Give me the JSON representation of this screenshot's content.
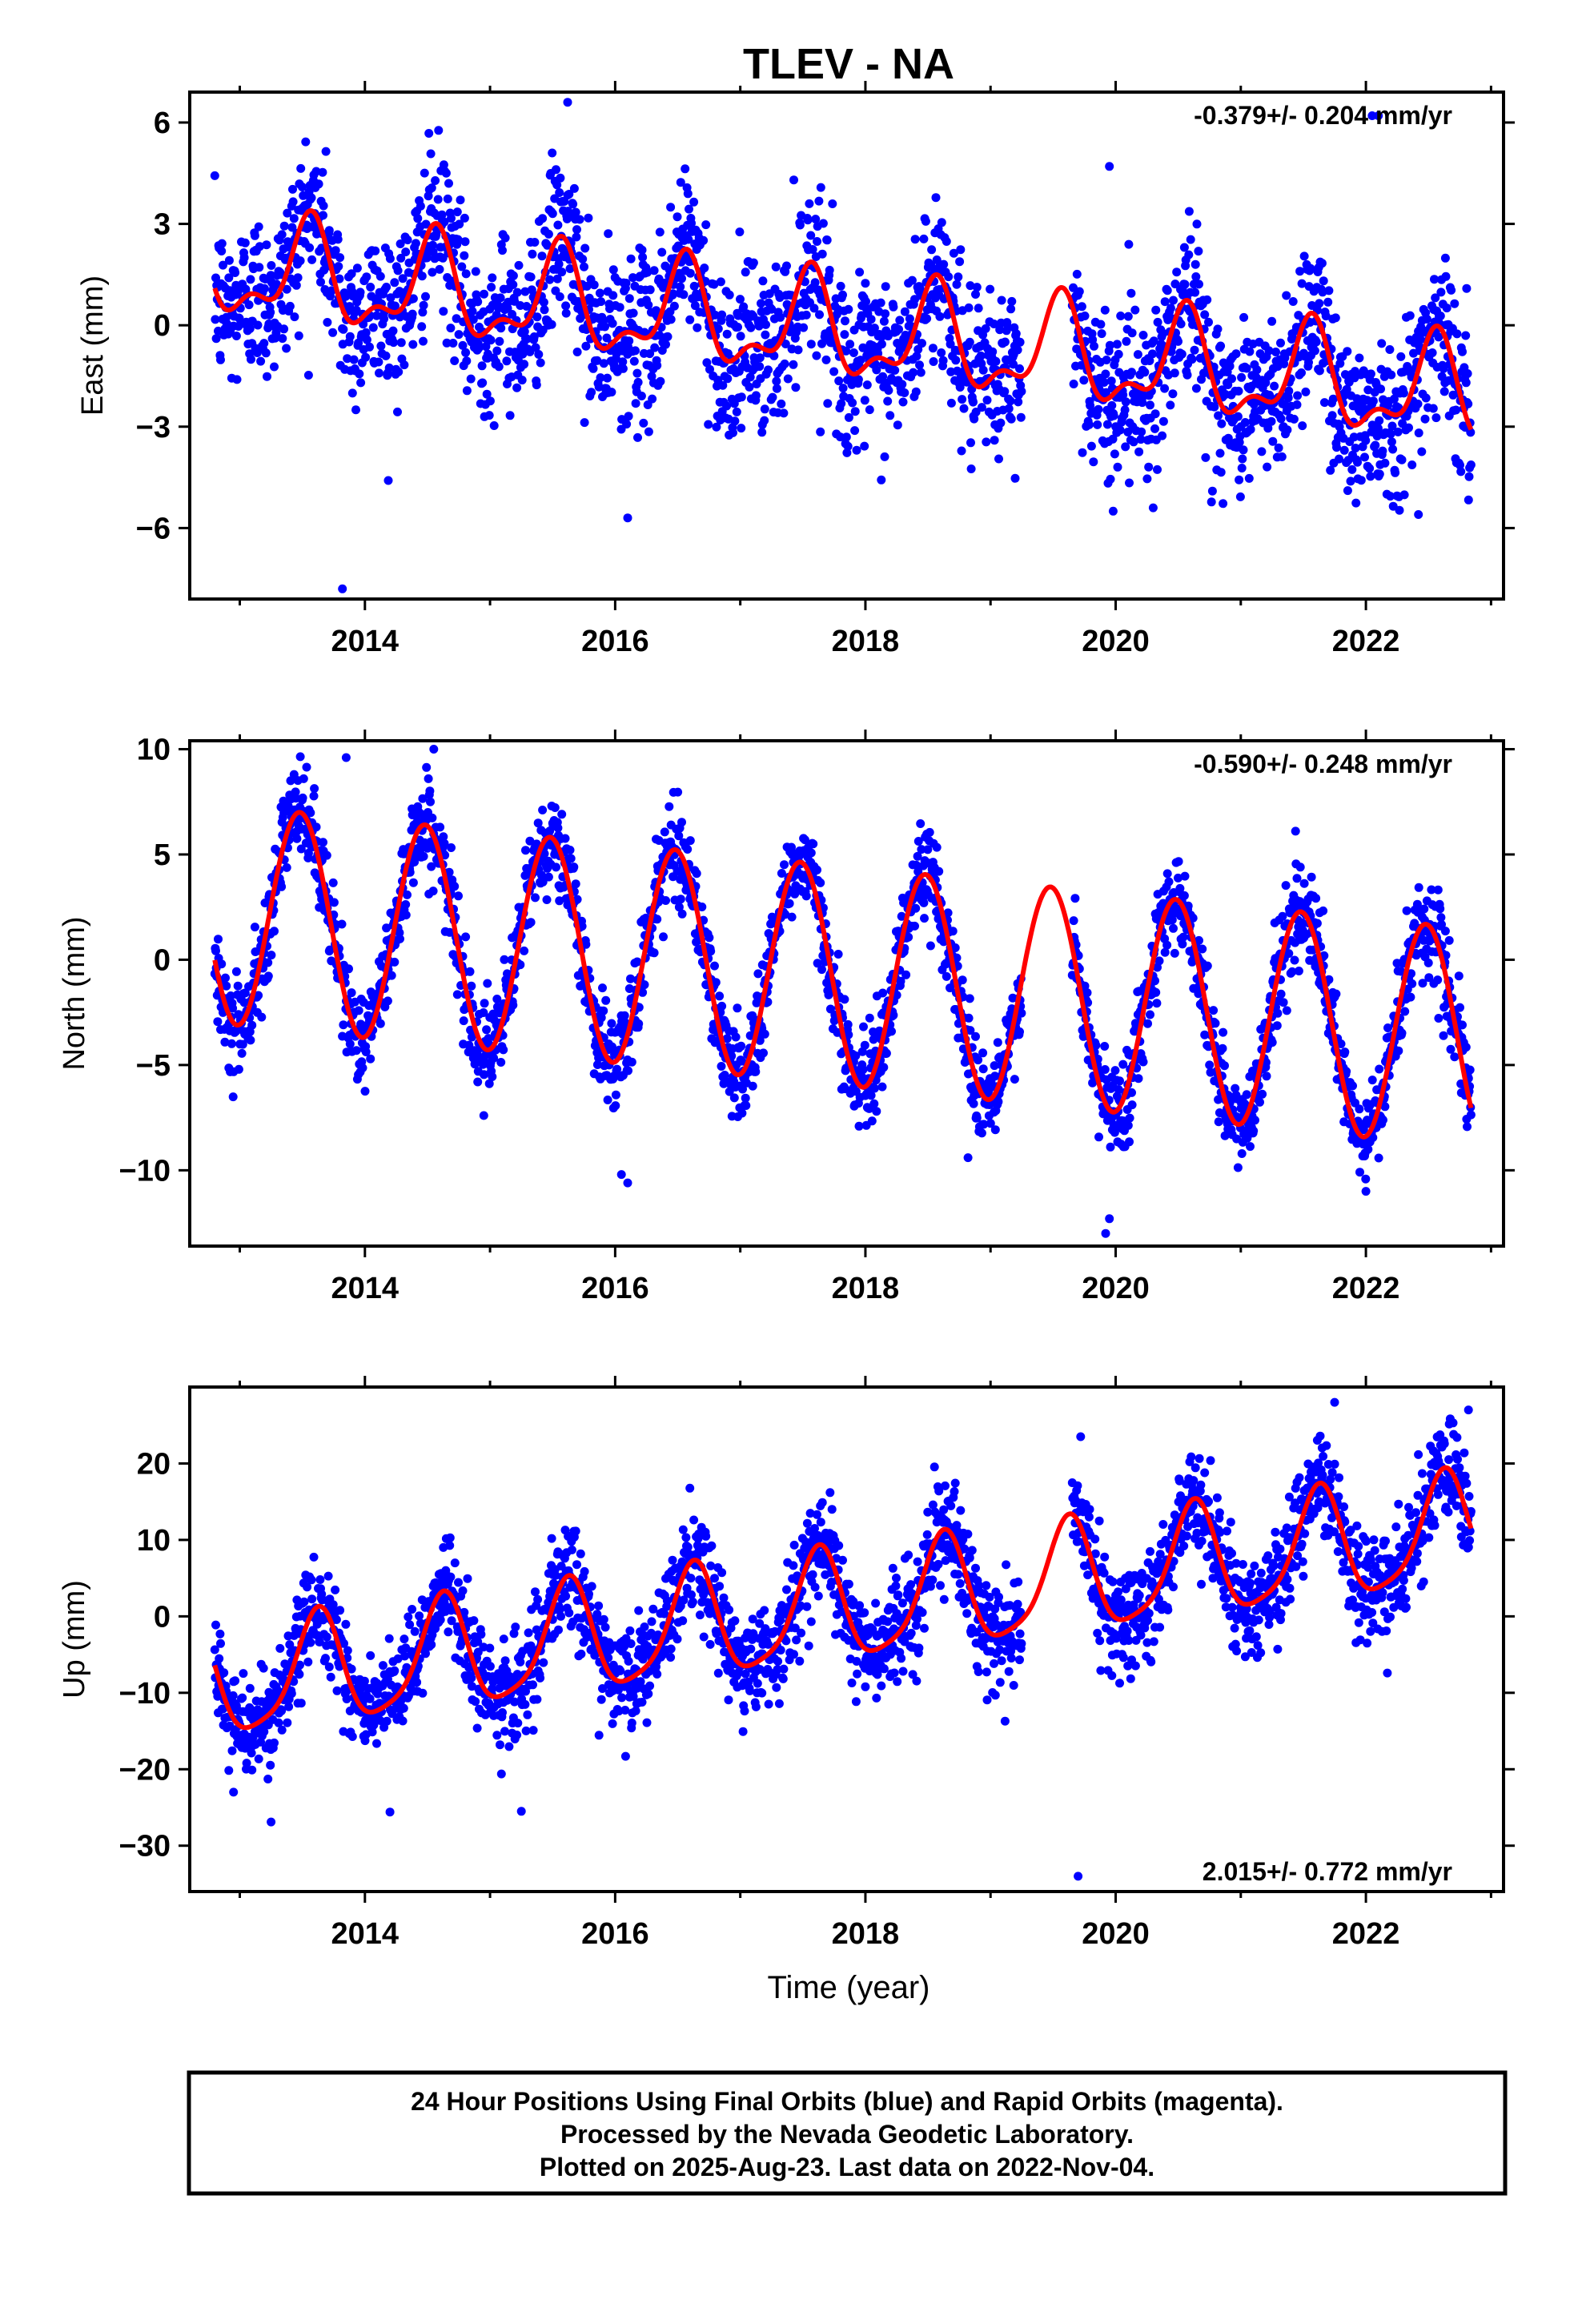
{
  "title": "TLEV - NA",
  "x_axis_label": "Time (year)",
  "footer": {
    "line1": "24 Hour Positions Using Final Orbits (blue) and Rapid Orbits (magenta).",
    "line2": "Processed by the Nevada Geodetic Laboratory.",
    "line3": "Plotted on 2025-Aug-23. Last data on 2022-Nov-04."
  },
  "colors": {
    "data": "#0000ff",
    "model": "#ff0000",
    "frame": "#000000"
  },
  "chart_data": [
    {
      "type": "scatter",
      "name": "east",
      "ylabel": "East (mm)",
      "rate_text": "-0.379+/- 0.204 mm/yr",
      "rate_position": "top-right",
      "xlim": [
        2012.6,
        2023.1
      ],
      "ylim": [
        -8.1,
        6.9
      ],
      "xticks": [
        2014,
        2016,
        2018,
        2020,
        2022
      ],
      "xtick_labels": [
        "2014",
        "2016",
        "2018",
        "2020",
        "2022"
      ],
      "yticks": [
        -6,
        -3,
        0,
        3,
        6
      ],
      "ytick_labels": [
        "−6",
        "−3",
        "0",
        "3",
        "6"
      ],
      "data_start": 2012.8,
      "data_end": 2022.84,
      "model": {
        "offset": 1.7,
        "trend": -0.379,
        "annual_amp": 1.35,
        "annual_peak": 0.55,
        "semiannual_amp": 0.65,
        "semiannual_peak": 0.08,
        "scatter": 1.2
      },
      "outliers": [
        [
          2013.82,
          -7.8
        ],
        [
          2016.1,
          -5.7
        ],
        [
          2019.98,
          -5.5
        ],
        [
          2020.3,
          -5.4
        ],
        [
          2022.1,
          6.2
        ],
        [
          2015.62,
          6.6
        ],
        [
          2019.95,
          4.7
        ],
        [
          2022.05,
          6.2
        ],
        [
          2022.42,
          -5.6
        ]
      ]
    },
    {
      "type": "scatter",
      "name": "north",
      "ylabel": "North (mm)",
      "rate_text": "-0.590+/- 0.248 mm/yr",
      "rate_position": "top-right",
      "xlim": [
        2012.6,
        2023.1
      ],
      "ylim": [
        -13.6,
        10.4
      ],
      "xticks": [
        2014,
        2016,
        2018,
        2020,
        2022
      ],
      "xtick_labels": [
        "2014",
        "2016",
        "2018",
        "2020",
        "2022"
      ],
      "yticks": [
        -10,
        -5,
        0,
        5,
        10
      ],
      "ytick_labels": [
        "−10",
        "−5",
        "0",
        "5",
        "10"
      ],
      "data_start": 2012.8,
      "data_end": 2022.84,
      "model": {
        "offset": 2.2,
        "trend": -0.59,
        "annual_amp": 5.2,
        "annual_peak": 0.48,
        "semiannual_amp": 0.0,
        "semiannual_peak": 0.0,
        "scatter": 1.1
      },
      "outliers": [
        [
          2016.05,
          -10.2
        ],
        [
          2016.1,
          -10.6
        ],
        [
          2019.95,
          -12.3
        ],
        [
          2019.92,
          -13.0
        ],
        [
          2013.85,
          9.6
        ],
        [
          2014.55,
          10.0
        ],
        [
          2014.95,
          -7.4
        ],
        [
          2018.82,
          -9.4
        ],
        [
          2022.0,
          -11.0
        ]
      ]
    },
    {
      "type": "scatter",
      "name": "up",
      "ylabel": "Up (mm)",
      "rate_text": "2.015+/- 0.772 mm/yr",
      "rate_position": "bottom-right",
      "xlim": [
        2012.6,
        2023.1
      ],
      "ylim": [
        -36,
        30
      ],
      "xticks": [
        2014,
        2016,
        2018,
        2020,
        2022
      ],
      "xtick_labels": [
        "2014",
        "2016",
        "2018",
        "2020",
        "2022"
      ],
      "yticks": [
        -30,
        -20,
        -10,
        0,
        10,
        20
      ],
      "ytick_labels": [
        "−30",
        "−20",
        "−10",
        "0",
        "10",
        "20"
      ],
      "data_start": 2012.8,
      "data_end": 2022.84,
      "model": {
        "offset": -9.0,
        "trend": 2.015,
        "annual_amp": 7.2,
        "annual_peak": 0.62,
        "semiannual_amp": 1.5,
        "semiannual_peak": 0.15,
        "scatter": 3.3
      },
      "outliers": [
        [
          2019.7,
          -34.0
        ],
        [
          2013.25,
          -26.9
        ],
        [
          2014.2,
          -25.6
        ],
        [
          2015.25,
          -25.5
        ],
        [
          2021.75,
          28.0
        ],
        [
          2022.82,
          27.0
        ],
        [
          2012.95,
          -23.0
        ],
        [
          2019.72,
          23.5
        ]
      ]
    }
  ]
}
